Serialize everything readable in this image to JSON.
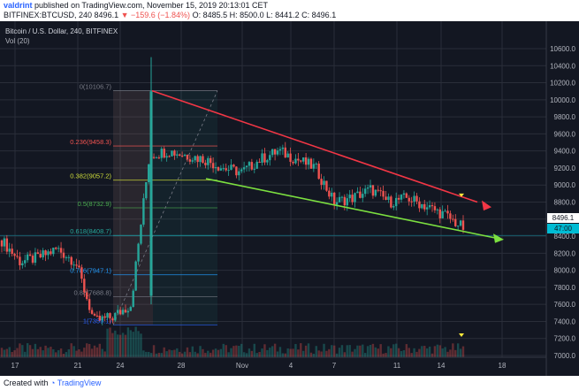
{
  "header": {
    "author": "valdrint",
    "published": "published on TradingView.com, November 15, 2019 20:13:01 CET",
    "symbol": "BITFINEX:BTCUSD, 240",
    "last": "8496.1",
    "change": "▼ −159.6 (−1.84%)",
    "ohlc": "O: 8485.5  H: 8500.0  L: 8441.2  C: 8496.1"
  },
  "legend": {
    "title": "Bitcoin / U.S. Dollar, 240, BITFINEX",
    "volume": "Vol (20)"
  },
  "footer": {
    "created": "Created with",
    "brand": "TradingView"
  },
  "price_tag": {
    "price": "8496.1",
    "countdown": "47:00"
  },
  "colors": {
    "up": "#26a69a",
    "down": "#ef5350",
    "resistance": "#f23645",
    "support": "#7ce040",
    "fib_line": "#787b86",
    "background": "#131722"
  },
  "chart_data": {
    "type": "line",
    "title": "Bitcoin / U.S. Dollar, 240, BITFINEX",
    "x_ticks": [
      "17",
      "21",
      "24",
      "28",
      "Nov",
      "4",
      "7",
      "11",
      "14",
      "18"
    ],
    "y_ticks": [
      "7000.0",
      "7200.0",
      "7400.0",
      "7600.0",
      "7800.0",
      "8000.0",
      "8200.0",
      "8400.0",
      "8600.0",
      "8800.0",
      "9000.0",
      "9200.0",
      "9400.0",
      "9600.0",
      "9800.0",
      "10000.0",
      "10200.0",
      "10400.0",
      "10600.0"
    ],
    "ylim": [
      7000,
      10700
    ],
    "grid": true,
    "series": [
      {
        "x": [
          "Oct 15",
          "Oct 17",
          "Oct 19",
          "Oct 21",
          "Oct 22",
          "Oct 23",
          "Oct 24",
          "Oct 25",
          "Oct 26",
          "Oct 27",
          "Oct 28",
          "Oct 29",
          "Oct 30",
          "Nov 1",
          "Nov 3",
          "Nov 5",
          "Nov 6",
          "Nov 7",
          "Nov 8",
          "Nov 9",
          "Nov 10",
          "Nov 11",
          "Nov 12",
          "Nov 13",
          "Nov 14",
          "Nov 15"
        ],
        "values": [
          8350,
          8100,
          8150,
          8250,
          8100,
          7400,
          7450,
          7600,
          9350,
          9400,
          9350,
          9300,
          9200,
          9150,
          9300,
          9400,
          9300,
          9200,
          8800,
          8850,
          8950,
          8800,
          8850,
          8750,
          8650,
          8496
        ]
      }
    ],
    "fib_levels": [
      {
        "label": "0(10106.7)",
        "price": 10106.7
      },
      {
        "label": "0.236(9458.3)",
        "price": 9458.3
      },
      {
        "label": "0.382(9057.2)",
        "price": 9057.2
      },
      {
        "label": "0.5(8732.9)",
        "price": 8732.9
      },
      {
        "label": "0.618(8408.7)",
        "price": 8408.7
      },
      {
        "label": "0.786(7947.1)",
        "price": 7947.1
      },
      {
        "label": "0.88(7688.8)",
        "price": 7688.8
      },
      {
        "label": "1(7359.1)",
        "price": 7359.1
      }
    ]
  }
}
